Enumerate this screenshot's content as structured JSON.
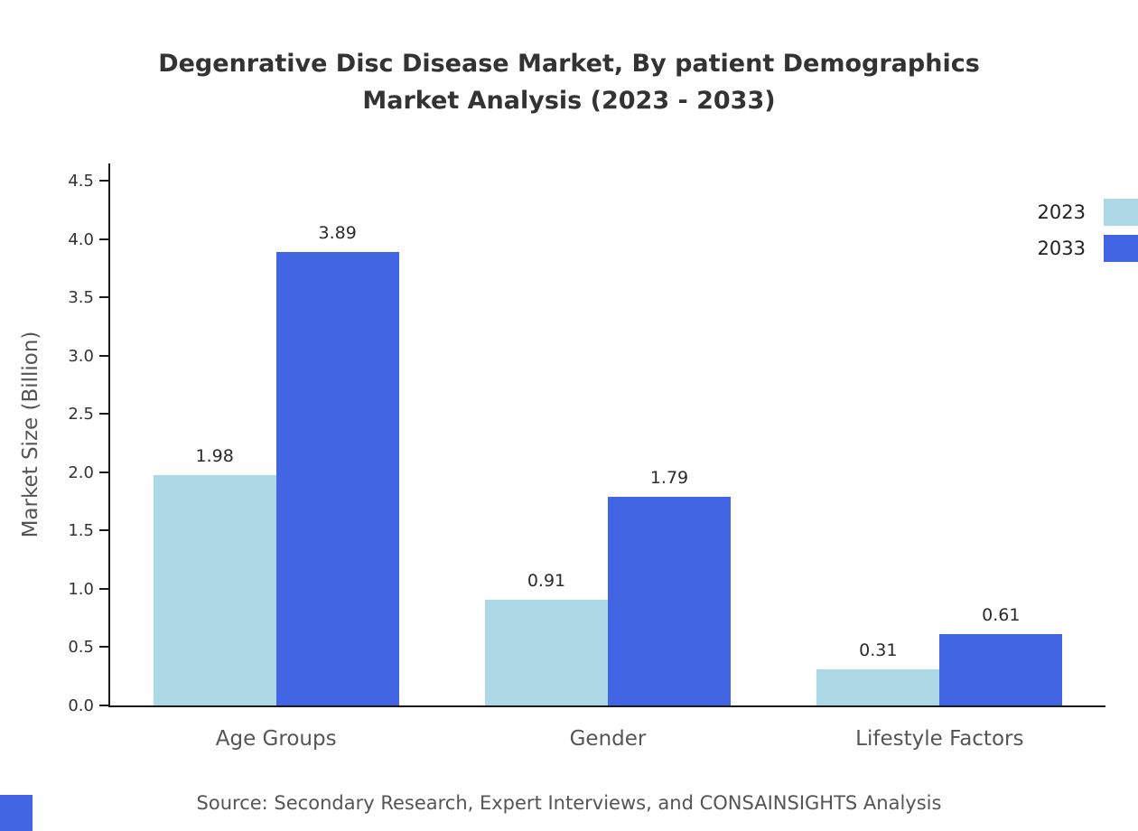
{
  "title": {
    "line1": "Degenrative Disc Disease Market, By patient Demographics",
    "line2": "Market Analysis (2023 - 2033)"
  },
  "source": "Source: Secondary Research, Expert Interviews, and CONSAINSIGHTS Analysis",
  "colors": {
    "series_2023": "#ADD8E6",
    "series_2033": "#4266E3",
    "axis": "#1a1a1a",
    "title_text": "#333333",
    "muted_text": "#555555"
  },
  "chart_data": {
    "type": "bar",
    "title": "Degenrative Disc Disease Market, By patient Demographics Market Analysis (2023 - 2033)",
    "categories": [
      "Age Groups",
      "Gender",
      "Lifestyle Factors"
    ],
    "series": [
      {
        "name": "2023",
        "color": "#ADD8E6",
        "values": [
          1.98,
          0.91,
          0.31
        ]
      },
      {
        "name": "2033",
        "color": "#4266E3",
        "values": [
          3.89,
          1.79,
          0.61
        ]
      }
    ],
    "xlabel": "",
    "ylabel": "Market Size (Billion)",
    "yticks": [
      0.0,
      0.5,
      1.0,
      1.5,
      2.0,
      2.5,
      3.0,
      3.5,
      4.0,
      4.5
    ],
    "ylim": [
      0,
      4.65
    ],
    "grid": false,
    "legend_position": "top-right"
  }
}
